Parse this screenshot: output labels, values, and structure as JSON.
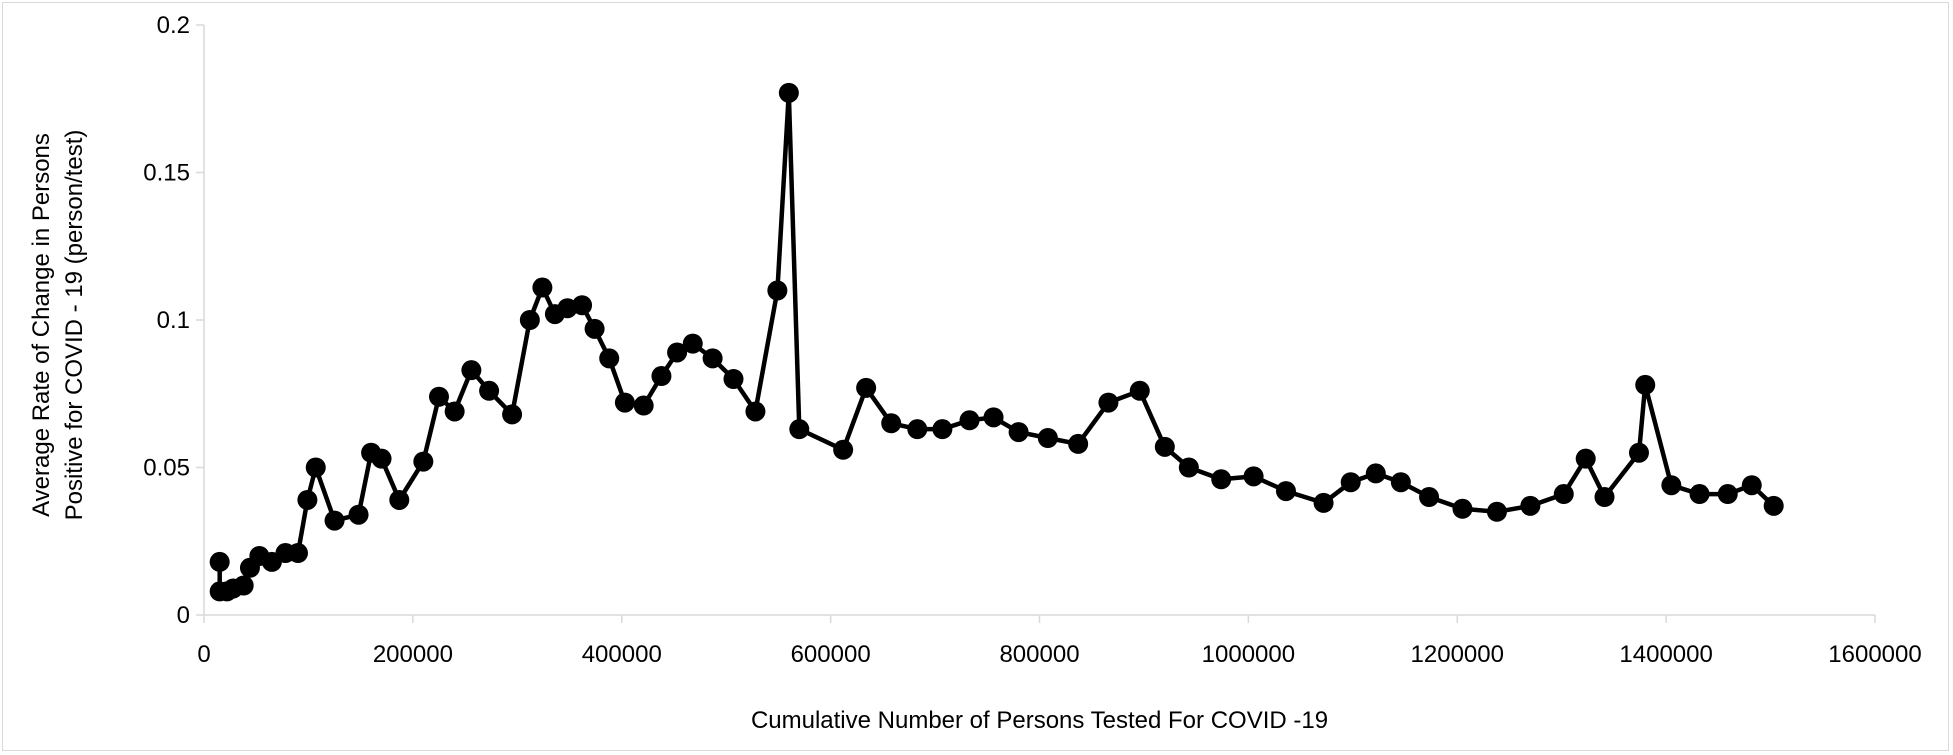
{
  "chart_data": {
    "type": "line",
    "title": "",
    "xlabel": "Cumulative Number of Persons Tested For COVID -19",
    "ylabel_lines": [
      "Average Rate of Change in  Persons",
      "Positive for COVID - 19 (person/test)"
    ],
    "xlim": [
      0,
      1600000
    ],
    "ylim": [
      0,
      0.2
    ],
    "x_ticks": [
      0,
      200000,
      400000,
      600000,
      800000,
      1000000,
      1200000,
      1400000,
      1600000
    ],
    "x_tick_labels": [
      "0",
      "200000",
      "400000",
      "600000",
      "800000",
      "1000000",
      "1200000",
      "1400000",
      "1600000"
    ],
    "y_ticks": [
      0,
      0.05,
      0.1,
      0.15,
      0.2
    ],
    "y_tick_labels": [
      "0",
      "0.05",
      "0.1",
      "0.15",
      "0.2"
    ],
    "grid": false,
    "legend": "none",
    "line_color": "#000000",
    "marker": "circle",
    "series": [
      {
        "x": [
          15000,
          15000,
          22000,
          28000,
          38000,
          44000,
          53000,
          65000,
          78000,
          90000,
          99000,
          107000,
          125000,
          148000,
          160000,
          170000,
          187000,
          210000,
          225000,
          240000,
          256000,
          273000,
          295000,
          312000,
          324000,
          336000,
          348000,
          362000,
          374000,
          388000,
          403000,
          421000,
          438000,
          453000,
          468000,
          487000,
          507000,
          528000,
          549000,
          560000,
          570000,
          612000,
          634000,
          658000,
          683000,
          707000,
          733000,
          756000,
          780000,
          808000,
          837000,
          866000,
          896000,
          920000,
          943000,
          974000,
          1005000,
          1036000,
          1072000,
          1098000,
          1122000,
          1146000,
          1173000,
          1205000,
          1238000,
          1270000,
          1302000,
          1323000,
          1341000,
          1374000,
          1380000,
          1405000,
          1432000,
          1459000,
          1482000,
          1503000
        ],
        "y": [
          0.018,
          0.008,
          0.008,
          0.009,
          0.01,
          0.016,
          0.02,
          0.018,
          0.021,
          0.021,
          0.039,
          0.05,
          0.032,
          0.034,
          0.055,
          0.053,
          0.039,
          0.052,
          0.074,
          0.069,
          0.083,
          0.076,
          0.068,
          0.1,
          0.111,
          0.102,
          0.104,
          0.105,
          0.097,
          0.087,
          0.072,
          0.071,
          0.081,
          0.089,
          0.092,
          0.087,
          0.08,
          0.069,
          0.11,
          0.177,
          0.063,
          0.056,
          0.077,
          0.065,
          0.063,
          0.063,
          0.066,
          0.067,
          0.062,
          0.06,
          0.058,
          0.072,
          0.076,
          0.057,
          0.05,
          0.046,
          0.047,
          0.042,
          0.038,
          0.045,
          0.048,
          0.045,
          0.04,
          0.036,
          0.035,
          0.037,
          0.041,
          0.053,
          0.04,
          0.055,
          0.078,
          0.044,
          0.041,
          0.041,
          0.044,
          0.037
        ]
      }
    ]
  }
}
